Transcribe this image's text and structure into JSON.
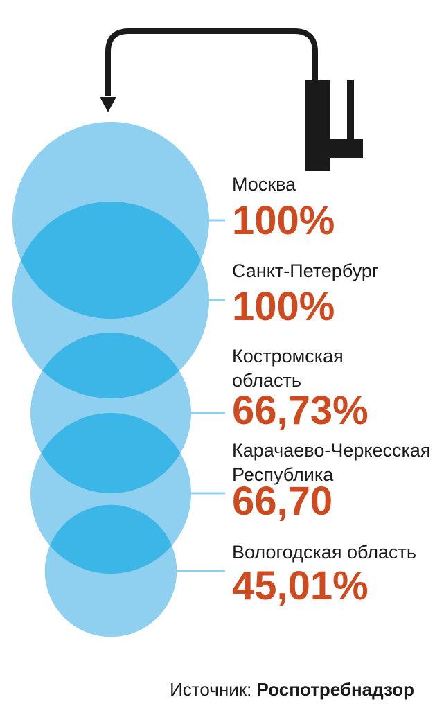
{
  "chart_data": {
    "type": "bubble",
    "unit": "%",
    "categories": [
      "Москва",
      "Санкт-Петербург",
      "Костромская область",
      "Карачаево-Черкесская Республика",
      "Вологодская область"
    ],
    "label_lines": [
      [
        "Москва"
      ],
      [
        "Санкт-Петербург"
      ],
      [
        "Костромская",
        "область"
      ],
      [
        "Карачаево-Черкесская",
        "Республика"
      ],
      [
        "Вологодская область"
      ]
    ],
    "values": [
      100,
      100,
      66.73,
      66.7,
      45.01
    ],
    "value_labels": [
      "100%",
      "100%",
      "66,73%",
      "66,70",
      "45,01%"
    ]
  },
  "source": {
    "label": "Источник:",
    "name": "Роспотребнадзор"
  },
  "colors": {
    "bubble": "#8fd0f0",
    "overlap": "#3cb6e6",
    "value": "#d04a1f",
    "leader": "#8fd0f0",
    "icon": "#1a1a1a"
  },
  "icons": {
    "top": "faucet-icon"
  }
}
